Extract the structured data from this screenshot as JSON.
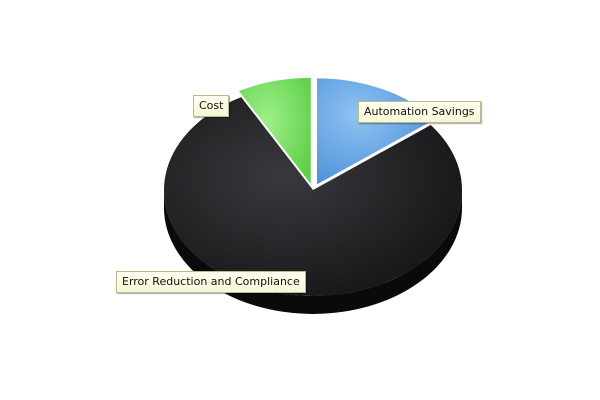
{
  "chart_data": {
    "type": "pie",
    "title": "",
    "categories": [
      "Automation Savings",
      "Error Reduction and Compliance",
      "Cost"
    ],
    "values": [
      14.5,
      77.5,
      8.0
    ],
    "exploded": [
      "Automation Savings",
      "Cost"
    ],
    "colors": {
      "Automation Savings": "#6aa8e6",
      "Error Reduction and Compliance": "#1c1c1e",
      "Cost": "#79de63"
    },
    "style": "3d",
    "legend": "none"
  }
}
